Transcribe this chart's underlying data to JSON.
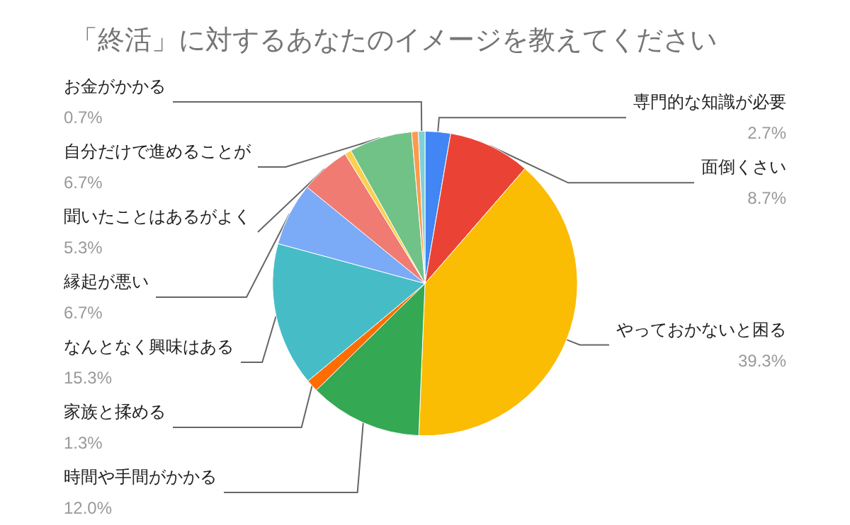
{
  "chart_data": {
    "type": "pie",
    "title": "「終活」に対するあなたのイメージを教えてください",
    "categories": [
      "専門的な知識が必要",
      "面倒くさい",
      "やっておかないと困る",
      "時間や手間がかかる",
      "家族と揉める",
      "なんとなく興味はある",
      "縁起が悪い",
      "聞いたことはあるがよく",
      null,
      "自分だけで進めることが",
      null,
      "お金がかかる"
    ],
    "values": [
      2.7,
      8.7,
      39.3,
      12.0,
      1.3,
      15.3,
      6.7,
      5.3,
      0.7,
      6.7,
      0.7,
      0.7
    ],
    "value_labels": [
      "2.7%",
      "8.7%",
      "39.3%",
      "12.0%",
      "1.3%",
      "15.3%",
      "6.7%",
      "5.3%",
      null,
      "6.7%",
      null,
      "0.7%"
    ],
    "colors": [
      "#4285f4",
      "#ea4335",
      "#fbbc04",
      "#34a853",
      "#ff6d01",
      "#46bdc6",
      "#7baaf7",
      "#f07b72",
      "#fcd04f",
      "#71c287",
      "#ff994d",
      "#7ed1d7"
    ],
    "legend": false
  }
}
